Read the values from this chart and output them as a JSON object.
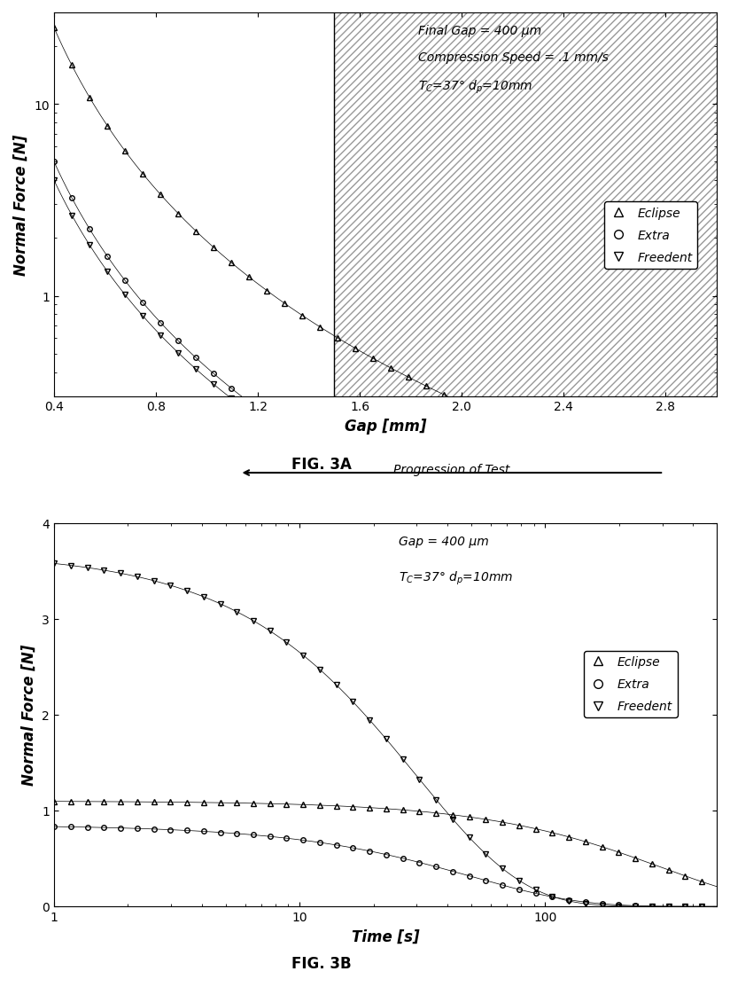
{
  "fig3a": {
    "title": "FIG. 3A",
    "xlabel": "Gap [mm]",
    "ylabel": "Normal Force [N]",
    "annotation_line1": "Final Gap = 400 μm",
    "annotation_line2": "Compression Speed = .1 mm/s",
    "annotation_line3": "T$_C$=37° d$_p$=10mm",
    "xmin": 0.4,
    "xmax": 3.0,
    "ymin": 0.3,
    "ymax": 30,
    "shade_start": 1.5,
    "legend_labels": [
      "Eclipse",
      "Extra",
      "Freedent"
    ],
    "eclipse_A": 28.0,
    "eclipse_b": 2.5,
    "extra_A": 5.0,
    "extra_b": 2.2,
    "freedent_A": 4.0,
    "freedent_b": 2.1
  },
  "fig3b": {
    "title": "FIG. 3B",
    "xlabel": "Time [s]",
    "ylabel": "Normal Force [N]",
    "annotation_line1": "Gap = 400 μm",
    "annotation_line2": "T$_C$=37° d$_p$=10mm",
    "xmin": 1,
    "xmax": 500,
    "ymin": 0,
    "ymax": 4,
    "legend_labels": [
      "Eclipse",
      "Extra",
      "Freedent"
    ],
    "eclipse_A": 1.0,
    "eclipse_tau": 200,
    "eclipse_n": 0.5,
    "extra_A": 0.5,
    "extra_tau": 20,
    "extra_n": 0.5,
    "freedent_A": 4.5,
    "freedent_tau": 100,
    "freedent_n": 0.6
  },
  "background_color": "#ffffff",
  "line_color": "#000000",
  "hatch_color": "#888888",
  "marker_size": 5,
  "font_family": "DejaVu Sans"
}
